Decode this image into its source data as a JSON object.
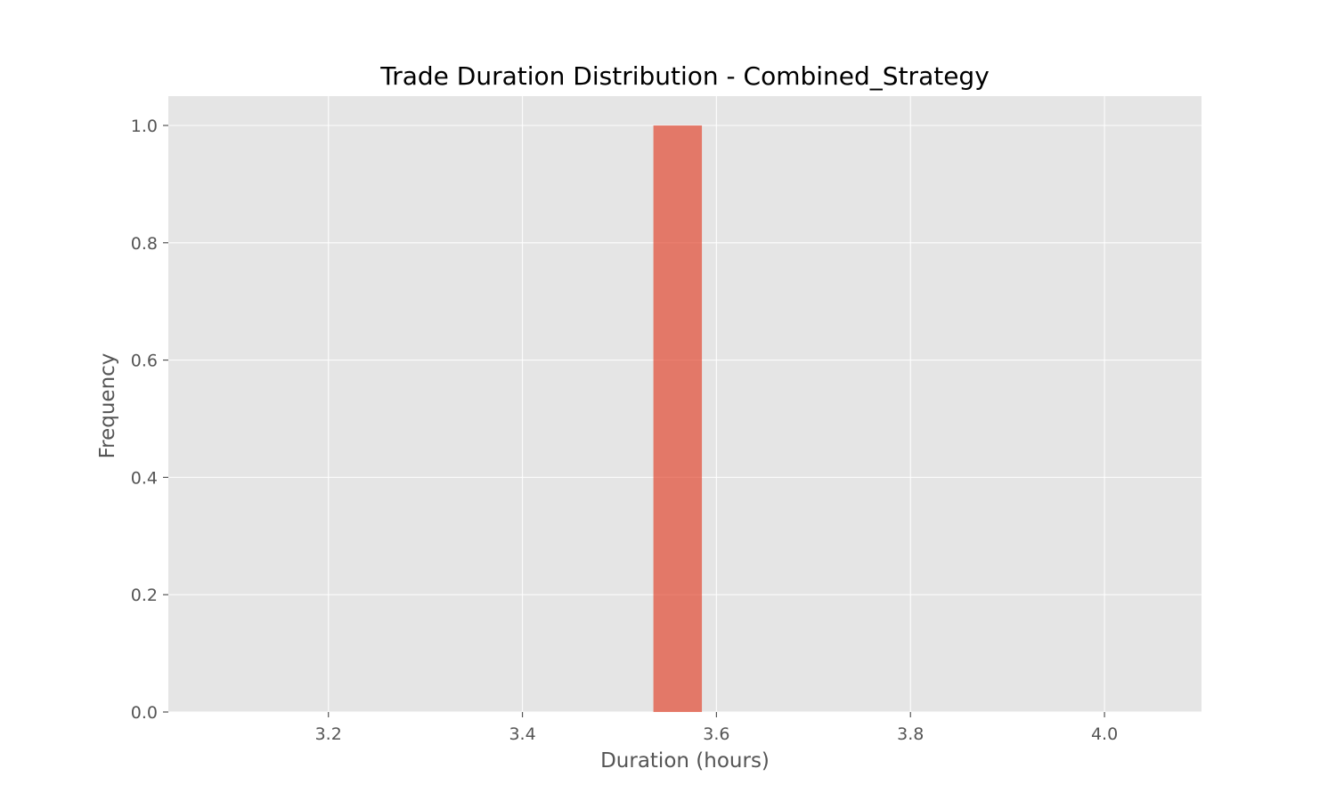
{
  "chart_data": {
    "type": "bar",
    "title": "Trade Duration Distribution - Combined_Strategy",
    "xlabel": "Duration (hours)",
    "ylabel": "Frequency",
    "xlim": [
      3.035,
      4.1
    ],
    "ylim": [
      0.0,
      1.05
    ],
    "x_ticks": [
      "3.2",
      "3.4",
      "3.6",
      "3.8",
      "4.0"
    ],
    "y_ticks": [
      "0.0",
      "0.2",
      "0.4",
      "0.6",
      "0.8",
      "1.0"
    ],
    "bins": [
      {
        "x_start": 3.535,
        "x_end": 3.585,
        "value": 1.0
      }
    ],
    "grid": true,
    "legend": "none",
    "colors": {
      "bar": "#E24A33",
      "plot_background": "#E5E5E5",
      "grid": "#FFFFFF",
      "tick_mark": "#555555"
    }
  }
}
